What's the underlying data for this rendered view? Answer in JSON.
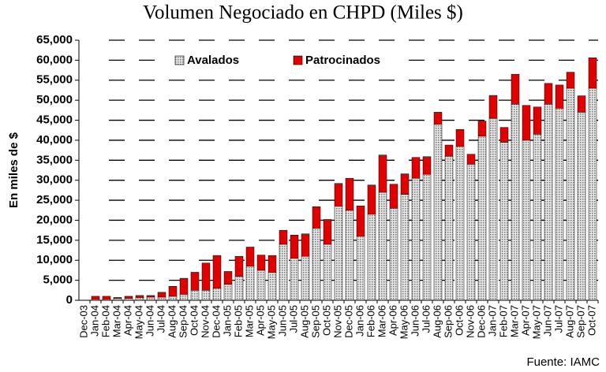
{
  "chart_data": {
    "type": "stacked_bar",
    "title": "Volumen Negociado en CHPD (Miles $)",
    "y_label": "En miles de $",
    "source": "Fuente: IAMC",
    "categories": [
      "Dec-03",
      "Jan-04",
      "Feb-04",
      "Mar-04",
      "Apr-04",
      "May-04",
      "Jun-04",
      "Jul-04",
      "Aug-04",
      "Sep-04",
      "Oct-04",
      "Nov-04",
      "Dec-04",
      "Jan-05",
      "Feb-05",
      "Mar-05",
      "Apr-05",
      "May-05",
      "Jun-05",
      "Jul-05",
      "Aug-05",
      "Sep-05",
      "Oct-05",
      "Nov-05",
      "Dec-05",
      "Jan-06",
      "Feb-06",
      "Mar-06",
      "Apr-06",
      "May-06",
      "Jun-06",
      "Jul-06",
      "Aug-06",
      "Sep-06",
      "Oct-06",
      "Nov-06",
      "Dec-06",
      "Jan-07",
      "Feb-07",
      "Mar-07",
      "Apr-07",
      "May-07",
      "Jun-07",
      "Jul-07",
      "Aug-07",
      "Sep-07",
      "Oct-07"
    ],
    "series": [
      {
        "name": "Avalados",
        "color": "#c0c0c0",
        "values": [
          0,
          300,
          300,
          500,
          500,
          700,
          800,
          800,
          1000,
          1500,
          2500,
          2500,
          3000,
          4000,
          6000,
          8500,
          7500,
          7000,
          14000,
          10500,
          11000,
          18000,
          14000,
          23500,
          22500,
          16000,
          21500,
          27000,
          23000,
          26500,
          30500,
          31500,
          44000,
          36000,
          38500,
          34000,
          41000,
          45500,
          39500,
          49000,
          40000,
          41500,
          49000,
          48000,
          53000,
          47000,
          53000
        ]
      },
      {
        "name": "Patrocinados",
        "color": "#e00000",
        "values": [
          0,
          700,
          700,
          200,
          500,
          500,
          400,
          1200,
          2500,
          4000,
          4500,
          6800,
          8200,
          3200,
          5000,
          4800,
          3800,
          4200,
          3500,
          5800,
          5600,
          5400,
          6200,
          5700,
          8000,
          7600,
          7300,
          9300,
          6000,
          5100,
          5200,
          4400,
          3000,
          2800,
          4200,
          2500,
          3800,
          5700,
          3700,
          7500,
          8700,
          6800,
          5200,
          5800,
          4000,
          4100,
          7600
        ]
      }
    ],
    "ylim": [
      0,
      65000
    ],
    "yticks": [
      0,
      {
        "value": 5000,
        "label": "5,000"
      },
      {
        "value": 10000,
        "label": "10,000"
      },
      {
        "value": 15000,
        "label": "15,000"
      },
      {
        "value": 20000,
        "label": "20,000"
      },
      {
        "value": 25000,
        "label": "25,000"
      },
      {
        "value": 30000,
        "label": "30,000"
      },
      {
        "value": 35000,
        "label": "35,000"
      },
      {
        "value": 40000,
        "label": "40,000"
      },
      {
        "value": 45000,
        "label": "45,000"
      },
      {
        "value": 50000,
        "label": "50,000"
      },
      {
        "value": 55000,
        "label": "55,000"
      },
      {
        "value": 60000,
        "label": "60,000"
      },
      {
        "value": 65000,
        "label": "65,000"
      }
    ],
    "grid": true
  }
}
